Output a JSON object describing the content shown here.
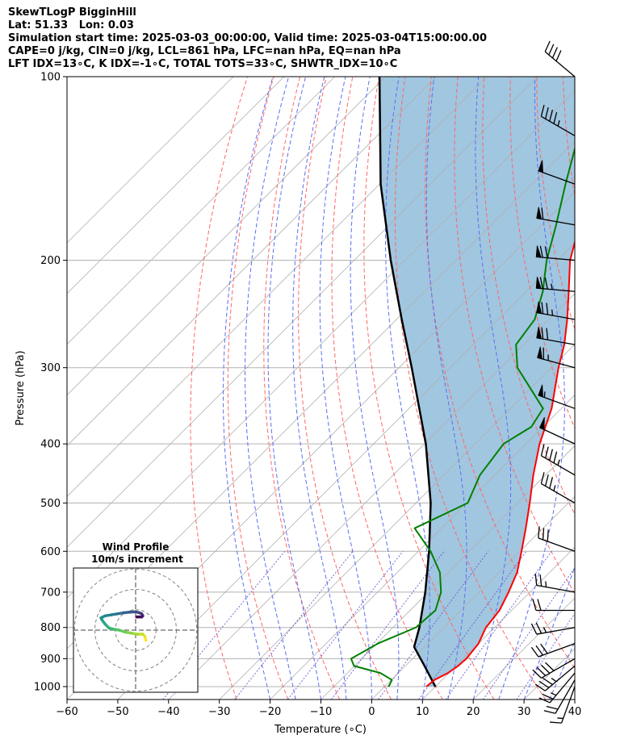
{
  "header": {
    "line1": "SkewTLogP BigginHill",
    "line2": "Lat: 51.33   Lon: 0.03",
    "line3": "Simulation start time: 2025-03-03_00:00:00, Valid time: 2025-03-04T15:00:00.00",
    "line4": "CAPE=0 j/kg, CIN=0 j/kg, LCL=861 hPa, LFC=nan hPa, EQ=nan hPa",
    "line5": "LFT IDX=13∘C, K IDX=-1∘C, TOTAL TOTS=33∘C, SHWTR_IDX=10∘C"
  },
  "chart_data": {
    "type": "line",
    "xlabel": "Temperature (∘C)",
    "ylabel": "Pressure (hPa)",
    "x_ticks": [
      -60,
      -50,
      -40,
      -30,
      -20,
      -10,
      0,
      10,
      20,
      30,
      40
    ],
    "x_tick_labels": [
      "−60",
      "−50",
      "−40",
      "−30",
      "−20",
      "−10",
      "0",
      "10",
      "20",
      "30",
      "40"
    ],
    "y_ticks": [
      100,
      200,
      300,
      400,
      500,
      600,
      700,
      800,
      900,
      1000
    ],
    "y_tick_labels": [
      "100",
      "200",
      "300",
      "400",
      "500",
      "600",
      "700",
      "800",
      "900",
      "1000"
    ],
    "xlim": [
      -60,
      40
    ],
    "ylim": [
      1050,
      100
    ],
    "y_scale": "log",
    "skew_deg": 45,
    "grid": true,
    "colors": {
      "temperature": "#ff0000",
      "dewpoint": "#008000",
      "parcel": "#000000",
      "shade": "#a1c6e0",
      "dry_adiabat": "#ff6666",
      "moist_adiabat": "#5b6ef2",
      "mixing_ratio": "#6a5acd",
      "isotherm": "#b0b0b0"
    },
    "series": [
      {
        "key": "temperature",
        "pressure": [
          1000,
          975,
          950,
          925,
          900,
          850,
          800,
          750,
          700,
          650,
          600,
          550,
          500,
          450,
          400,
          350,
          300,
          275,
          250,
          225,
          200,
          175,
          150,
          125,
          100
        ],
        "temp": [
          8.2,
          8.5,
          9.8,
          10.4,
          10.6,
          10,
          8.3,
          7.6,
          5.8,
          3.6,
          0.3,
          -3.4,
          -7.6,
          -12.4,
          -17.3,
          -21.9,
          -28.6,
          -32,
          -36.4,
          -41.6,
          -47.5,
          -52.6,
          -58.2,
          -63.8,
          -73.5
        ]
      },
      {
        "key": "dewpoint",
        "pressure": [
          1000,
          975,
          950,
          925,
          900,
          850,
          800,
          750,
          700,
          650,
          600,
          550,
          500,
          450,
          400,
          375,
          350,
          300,
          275,
          250,
          225,
          200,
          175,
          150,
          125,
          100
        ],
        "temp": [
          0.8,
          0.1,
          -3.5,
          -10.1,
          -12.1,
          -9.8,
          -5.5,
          -5,
          -7.5,
          -11.6,
          -17.6,
          -25.3,
          -19.8,
          -22.9,
          -24.4,
          -22.3,
          -23.6,
          -36.7,
          -41.5,
          -42.8,
          -46.7,
          -52.1,
          -57.2,
          -63.4,
          -70.4,
          -79.5
        ]
      },
      {
        "key": "parcel",
        "pressure": [
          1000,
          925,
          861,
          800,
          700,
          600,
          500,
          400,
          300,
          250,
          200,
          150,
          100
        ],
        "temp": [
          10,
          3.8,
          -2,
          -4.8,
          -10.6,
          -17.9,
          -27.1,
          -39.7,
          -57.5,
          -69,
          -82.8,
          -99.8,
          -121.2
        ]
      }
    ],
    "wind_barbs": {
      "pressure": [
        1000,
        975,
        950,
        925,
        900,
        850,
        800,
        750,
        700,
        600,
        500,
        450,
        400,
        350,
        300,
        275,
        250,
        225,
        200,
        175,
        150,
        125,
        100
      ],
      "speed_kt": [
        15,
        20,
        25,
        35,
        40,
        30,
        25,
        20,
        25,
        30,
        35,
        45,
        50,
        55,
        65,
        70,
        75,
        75,
        70,
        60,
        50,
        45,
        40
      ],
      "direction_deg": [
        200,
        210,
        220,
        230,
        240,
        250,
        260,
        270,
        280,
        290,
        300,
        300,
        295,
        290,
        285,
        280,
        280,
        275,
        275,
        280,
        290,
        300,
        310
      ]
    },
    "hodograph": {
      "title": "Wind Profile",
      "subtitle": "10m/s increment",
      "ring_increment_ms": 10,
      "max_ms": 30,
      "u": [
        5,
        4.5,
        3.5,
        1,
        -2,
        -5,
        -8,
        -11,
        -13,
        -15,
        -16.5,
        -17,
        -15,
        -12,
        -9,
        -6,
        -3,
        0,
        2,
        3,
        3.5,
        3,
        1.5,
        0.5
      ],
      "v": [
        -5,
        -3,
        -2,
        -2,
        -1.5,
        -1,
        0,
        0.5,
        1,
        3,
        5,
        6,
        7,
        7.5,
        8,
        8.5,
        8.8,
        9,
        8.5,
        8,
        7,
        6.5,
        6.5,
        6.5
      ]
    }
  }
}
